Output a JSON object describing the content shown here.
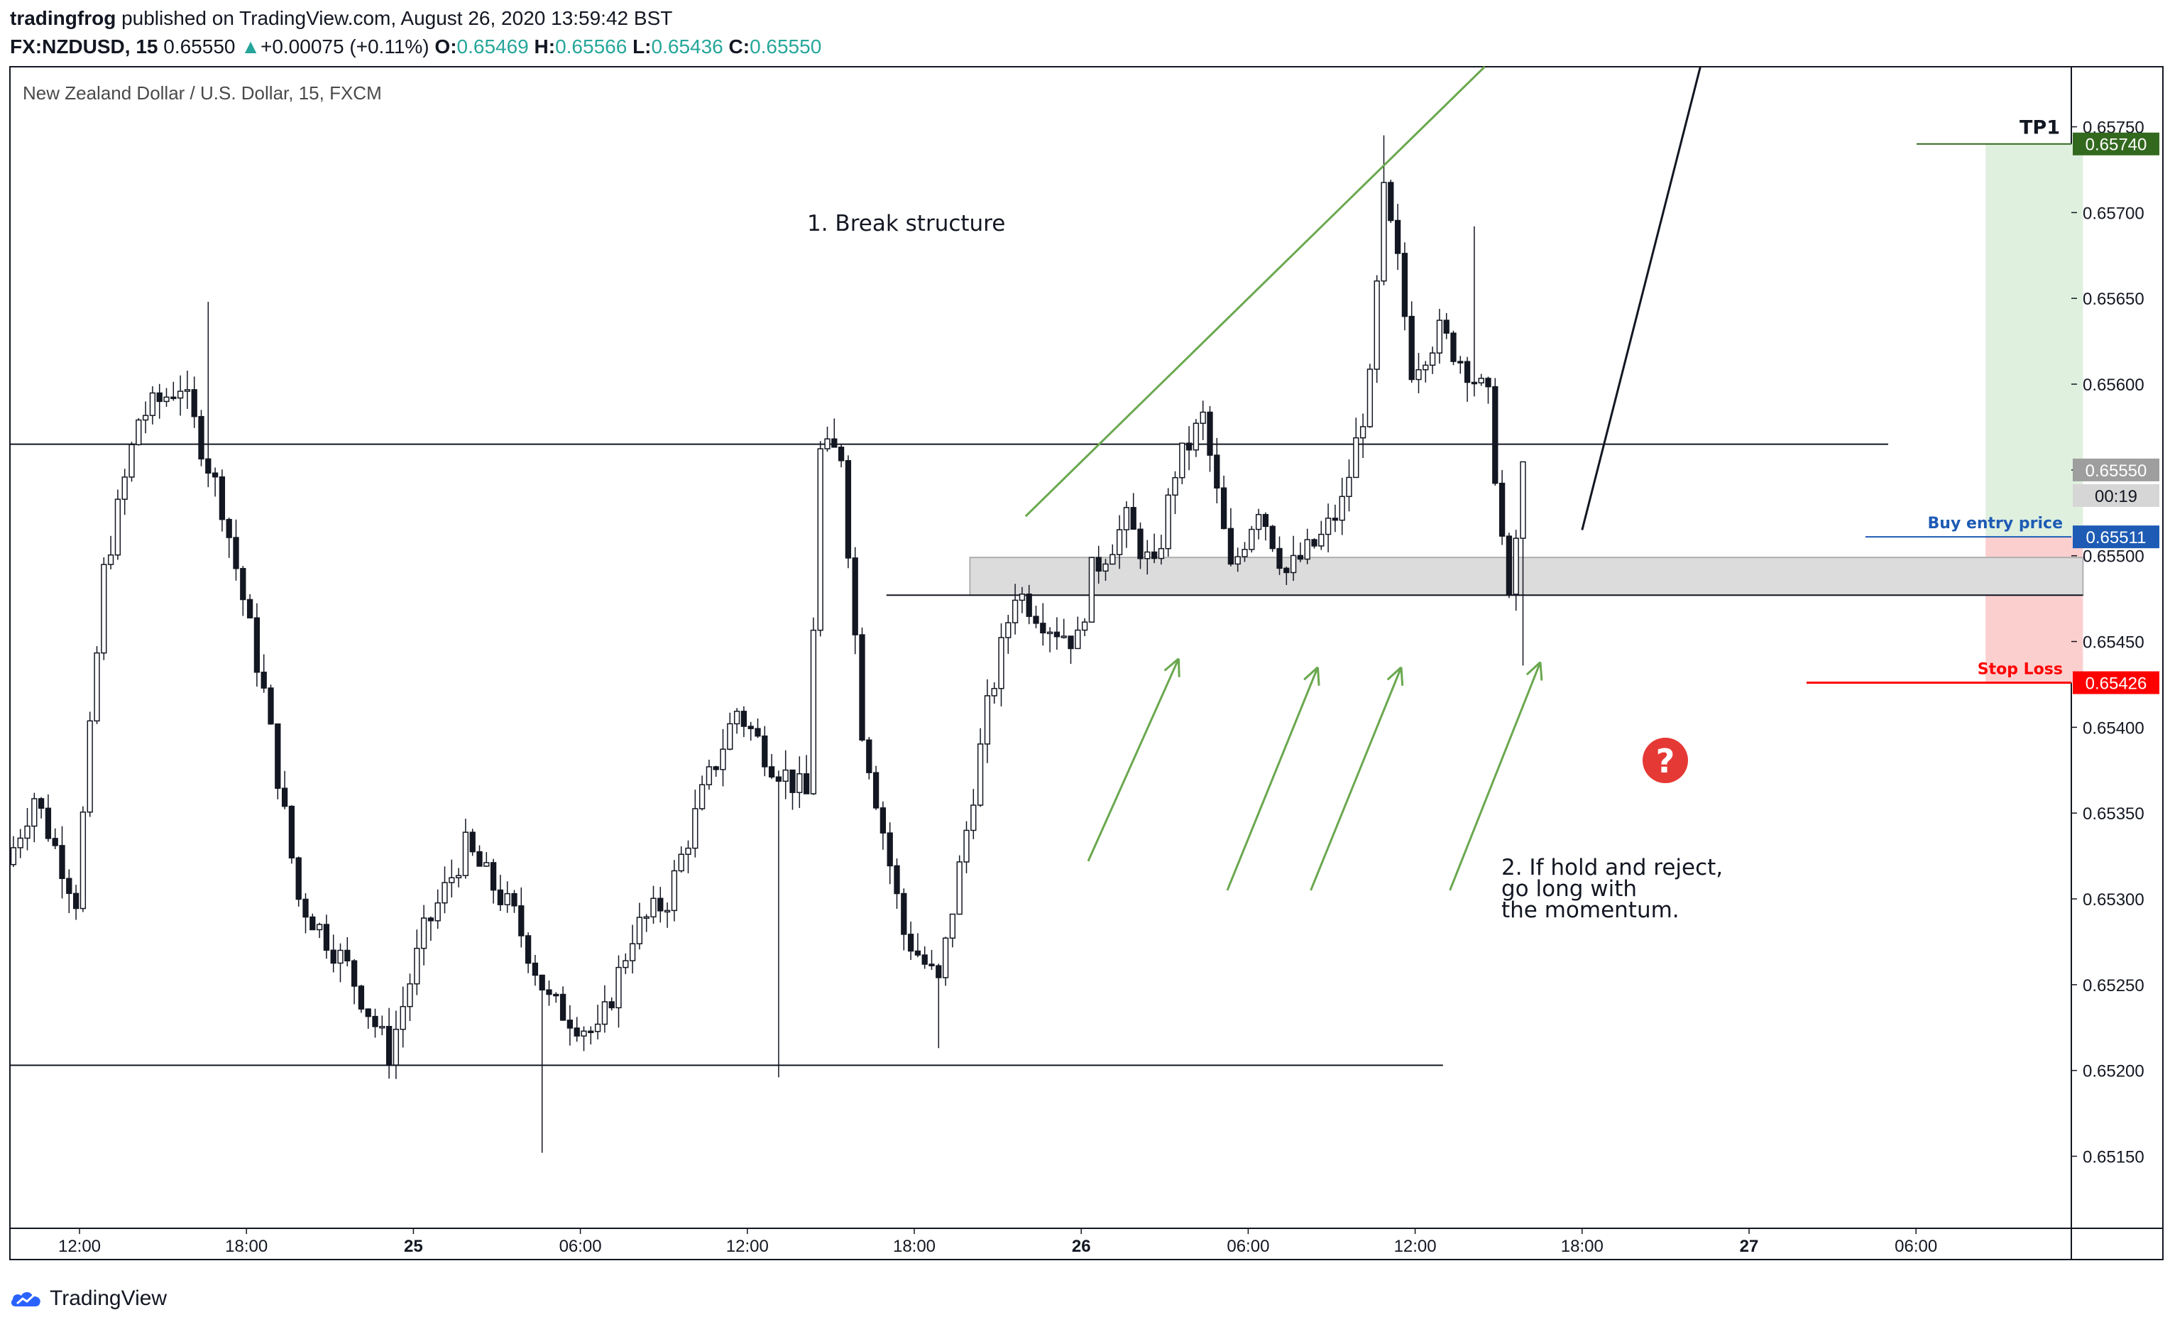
{
  "header": {
    "author": "tradingfrog",
    "published_text": "published on TradingView.com, August 26, 2020 13:59:42 BST",
    "symbol": "FX:NZDUSD, 15",
    "last": "0.65550",
    "change_arrow": "▲",
    "change": "+0.00075 (+0.11%)",
    "o_label": "O:",
    "o": "0.65469",
    "h_label": "H:",
    "h": "0.65566",
    "l_label": "L:",
    "l": "0.65436",
    "c_label": "C:",
    "c": "0.65550"
  },
  "footer": {
    "logo_text": "TradingView",
    "logo_icon": "tradingview-cloud-icon"
  },
  "colors": {
    "candle": "#131722",
    "trend_green": "#6aa84f",
    "tp_green": "#33691e",
    "tp_zone": "#dff0df",
    "sl_zone": "#fccfcf",
    "stop_red": "#ff0000",
    "buy_blue": "#1e5bb5",
    "price_gray": "#9e9e9e",
    "question_red": "#e53935"
  },
  "chart_data": {
    "type": "candlestick",
    "title": "New Zealand Dollar / U.S. Dollar, 15, FXCM",
    "ylim": [
      0.65108,
      0.65785
    ],
    "y_ticks": [
      "0.65750",
      "0.65700",
      "0.65650",
      "0.65600",
      "0.65550",
      "0.65500",
      "0.65450",
      "0.65400",
      "0.65350",
      "0.65300",
      "0.65250",
      "0.65200",
      "0.65150"
    ],
    "x_ticks": [
      {
        "label": "12:00",
        "bar": 10
      },
      {
        "label": "18:00",
        "bar": 34
      },
      {
        "label": "25",
        "bar": 58
      },
      {
        "label": "06:00",
        "bar": 82
      },
      {
        "label": "12:00",
        "bar": 106
      },
      {
        "label": "18:00",
        "bar": 130
      },
      {
        "label": "26",
        "bar": 154
      },
      {
        "label": "06:00",
        "bar": 178
      },
      {
        "label": "12:00",
        "bar": 202
      },
      {
        "label": "18:00",
        "bar": 226
      },
      {
        "label": "27",
        "bar": 250
      },
      {
        "label": "06:00",
        "bar": 274
      }
    ],
    "bars_total": 298,
    "candles": [],
    "key_points": [
      [
        0,
        0.6532
      ],
      [
        4,
        0.6536
      ],
      [
        8,
        0.6532
      ],
      [
        10,
        0.653
      ],
      [
        14,
        0.6549
      ],
      [
        19,
        0.6558
      ],
      [
        25,
        0.656
      ],
      [
        31,
        0.6553
      ],
      [
        37,
        0.6542
      ],
      [
        42,
        0.653
      ],
      [
        49,
        0.6526
      ],
      [
        55,
        0.6521
      ],
      [
        60,
        0.6528
      ],
      [
        66,
        0.6533
      ],
      [
        73,
        0.6529
      ],
      [
        78,
        0.6524
      ],
      [
        85,
        0.6522
      ],
      [
        90,
        0.6528
      ],
      [
        95,
        0.653
      ],
      [
        100,
        0.6536
      ],
      [
        105,
        0.6541
      ],
      [
        110,
        0.6538
      ],
      [
        115,
        0.6536
      ],
      [
        117,
        0.6556
      ],
      [
        120,
        0.6556
      ],
      [
        123,
        0.654
      ],
      [
        129,
        0.6528
      ],
      [
        134,
        0.6525
      ],
      [
        138,
        0.6534
      ],
      [
        141,
        0.6541
      ],
      [
        145,
        0.6548
      ],
      [
        150,
        0.6546
      ],
      [
        154,
        0.6545
      ],
      [
        156,
        0.6549
      ],
      [
        161,
        0.6552
      ],
      [
        165,
        0.6549
      ],
      [
        168,
        0.6555
      ],
      [
        172,
        0.6558
      ],
      [
        176,
        0.6549
      ],
      [
        180,
        0.6553
      ],
      [
        184,
        0.6549
      ],
      [
        189,
        0.6551
      ],
      [
        192,
        0.6553
      ],
      [
        196,
        0.656
      ],
      [
        198,
        0.6571
      ],
      [
        200,
        0.6567
      ],
      [
        202,
        0.6561
      ],
      [
        206,
        0.6563
      ],
      [
        210,
        0.6561
      ],
      [
        213,
        0.6559
      ],
      [
        216,
        0.6547
      ],
      [
        218,
        0.6555
      ]
    ],
    "horizontal_levels": [
      {
        "price": 0.65565,
        "from_bar": 0,
        "to_bar": 270,
        "color": "#131722"
      },
      {
        "price": 0.65477,
        "from_bar": 126,
        "to_bar": 298,
        "color": "#131722"
      },
      {
        "price": 0.65203,
        "from_bar": 0,
        "to_bar": 206,
        "color": "#131722"
      }
    ],
    "demand_zone": {
      "from_bar": 138,
      "to_bar": 298,
      "top": 0.65499,
      "bottom": 0.65477
    },
    "trendlines": [
      {
        "bar1": 146,
        "p1": 0.65523,
        "bar2": 212,
        "p2": 0.65785,
        "color": "#6aa84f"
      },
      {
        "bar1": 226,
        "p1": 0.65515,
        "bar2": 243,
        "p2": 0.65785,
        "color": "#131722"
      }
    ],
    "arrows": [
      {
        "from_bar": 155,
        "from_p": 0.65322,
        "to_bar": 168,
        "to_p": 0.6544
      },
      {
        "from_bar": 175,
        "from_p": 0.65305,
        "to_bar": 188,
        "to_p": 0.65435
      },
      {
        "from_bar": 187,
        "from_p": 0.65305,
        "to_bar": 200,
        "to_p": 0.65435
      },
      {
        "from_bar": 207,
        "from_p": 0.65305,
        "to_bar": 220,
        "to_p": 0.65438
      }
    ],
    "position": {
      "from_bar": 284,
      "to_bar": 298,
      "entry": 0.65511,
      "take_profit": 0.6574,
      "stop_loss": 0.65426
    },
    "annotations": {
      "break": "1. Break structure",
      "hold": "2. If hold and reject, go long with the momentum."
    },
    "price_labels": {
      "tp_caption": "TP1",
      "tp_value": "0.65740",
      "current_value": "0.65550",
      "countdown": "00:19",
      "buy_caption": "Buy entry price",
      "buy_value": "0.65511",
      "stop_caption": "Stop Loss",
      "stop_value": "0.65426"
    },
    "question_mark": "?"
  }
}
